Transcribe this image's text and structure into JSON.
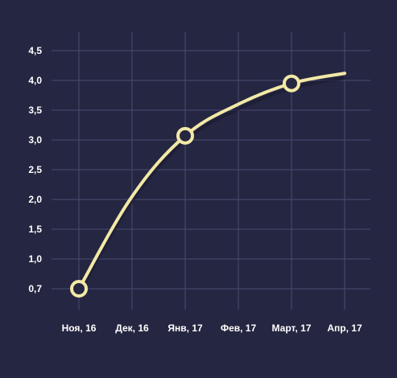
{
  "colors": {
    "background": "#252641",
    "grid": "#4a4c72",
    "line": "#f2e9a6",
    "marker_fill": "#252641",
    "text": "#ffffff"
  },
  "chart_data": {
    "type": "line",
    "title": "",
    "xlabel": "",
    "ylabel": "",
    "grid": true,
    "categories": [
      "Ноя, 16",
      "Дек, 16",
      "Янв, 17",
      "Фев, 17",
      "Март, 17",
      "Апр, 17"
    ],
    "yticks": [
      "0,7",
      "1,0",
      "1,5",
      "2,0",
      "2,5",
      "3,0",
      "3,5",
      "4,0",
      "4,5"
    ],
    "ylim": [
      0.7,
      4.5
    ],
    "series": [
      {
        "x": [
          "Ноя, 16",
          "Дек, 16",
          "Янв, 17",
          "Фев, 17",
          "Март, 17",
          "Апр, 17"
        ],
        "values": [
          0.7,
          2.05,
          3.07,
          3.6,
          3.95,
          4.12
        ],
        "markers": [
          true,
          false,
          true,
          false,
          true,
          false
        ]
      }
    ]
  }
}
